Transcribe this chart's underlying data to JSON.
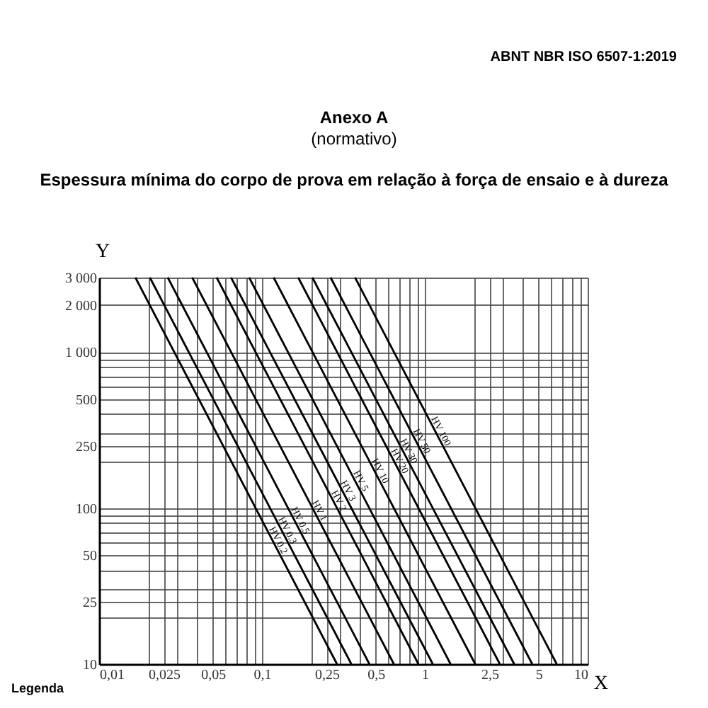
{
  "chart_data": {
    "type": "line",
    "title": "Espessura mínima do corpo de prova em relação à força de ensaio e à dureza",
    "xlabel": "X",
    "ylabel": "Y",
    "annotations": [
      "ABNT NBR ISO 6507-1:2019",
      "Anexo A",
      "(normativo)",
      "Legenda"
    ],
    "log": "xy",
    "grid": true,
    "legend": false,
    "line_style": "solid",
    "marker": "none",
    "xlim": [
      0.01,
      10
    ],
    "ylim": [
      10,
      3000
    ],
    "xticks": [
      {
        "value": 0.01,
        "label": "0,01"
      },
      {
        "value": 0.02,
        "label": null
      },
      {
        "value": 0.025,
        "label": "0,025"
      },
      {
        "value": 0.03,
        "label": null
      },
      {
        "value": 0.04,
        "label": null
      },
      {
        "value": 0.05,
        "label": "0,05"
      },
      {
        "value": 0.06,
        "label": null
      },
      {
        "value": 0.07,
        "label": null
      },
      {
        "value": 0.08,
        "label": null
      },
      {
        "value": 0.09,
        "label": null
      },
      {
        "value": 0.1,
        "label": "0,1"
      },
      {
        "value": 0.2,
        "label": null
      },
      {
        "value": 0.25,
        "label": "0,25"
      },
      {
        "value": 0.3,
        "label": null
      },
      {
        "value": 0.4,
        "label": null
      },
      {
        "value": 0.5,
        "label": "0,5"
      },
      {
        "value": 0.6,
        "label": null
      },
      {
        "value": 0.7,
        "label": null
      },
      {
        "value": 0.8,
        "label": null
      },
      {
        "value": 0.9,
        "label": null
      },
      {
        "value": 1,
        "label": "1"
      },
      {
        "value": 2,
        "label": null
      },
      {
        "value": 2.5,
        "label": "2,5"
      },
      {
        "value": 3,
        "label": null
      },
      {
        "value": 4,
        "label": null
      },
      {
        "value": 5,
        "label": "5"
      },
      {
        "value": 6,
        "label": null
      },
      {
        "value": 7,
        "label": null
      },
      {
        "value": 8,
        "label": null
      },
      {
        "value": 9,
        "label": null
      },
      {
        "value": 10,
        "label": "10"
      }
    ],
    "yticks": [
      {
        "value": 10,
        "label": "10"
      },
      {
        "value": 20,
        "label": null
      },
      {
        "value": 25,
        "label": "25"
      },
      {
        "value": 30,
        "label": null
      },
      {
        "value": 40,
        "label": null
      },
      {
        "value": 50,
        "label": "50"
      },
      {
        "value": 60,
        "label": null
      },
      {
        "value": 70,
        "label": null
      },
      {
        "value": 80,
        "label": null
      },
      {
        "value": 90,
        "label": null
      },
      {
        "value": 100,
        "label": "100"
      },
      {
        "value": 200,
        "label": null
      },
      {
        "value": 250,
        "label": "250"
      },
      {
        "value": 300,
        "label": null
      },
      {
        "value": 400,
        "label": null
      },
      {
        "value": 500,
        "label": "500"
      },
      {
        "value": 600,
        "label": null
      },
      {
        "value": 700,
        "label": null
      },
      {
        "value": 800,
        "label": null
      },
      {
        "value": 900,
        "label": null
      },
      {
        "value": 1000,
        "label": "1 000"
      },
      {
        "value": 2000,
        "label": "2 000"
      },
      {
        "value": 3000,
        "label": "3 000"
      }
    ],
    "series": [
      {
        "name": "HV 0.2",
        "color": "#000000",
        "x": [
          0.0167,
          0.289
        ],
        "values": [
          3000,
          10
        ]
      },
      {
        "name": "HV 0.3",
        "color": "#000000",
        "x": [
          0.0205,
          0.354
        ],
        "values": [
          3000,
          10
        ]
      },
      {
        "name": "HV 0.5",
        "color": "#000000",
        "x": [
          0.0264,
          0.457
        ],
        "values": [
          3000,
          10
        ]
      },
      {
        "name": "HV 1",
        "color": "#000000",
        "x": [
          0.0373,
          0.646
        ],
        "values": [
          3000,
          10
        ]
      },
      {
        "name": "HV 2",
        "color": "#000000",
        "x": [
          0.0527,
          0.914
        ],
        "values": [
          3000,
          10
        ]
      },
      {
        "name": "HV 3",
        "color": "#000000",
        "x": [
          0.0646,
          1.12
        ],
        "values": [
          3000,
          10
        ]
      },
      {
        "name": "HV 5",
        "color": "#000000",
        "x": [
          0.0834,
          1.44
        ],
        "values": [
          3000,
          10
        ]
      },
      {
        "name": "HV 10",
        "color": "#000000",
        "x": [
          0.118,
          2.04
        ],
        "values": [
          3000,
          10
        ]
      },
      {
        "name": "HV 20",
        "color": "#000000",
        "x": [
          0.167,
          2.89
        ],
        "values": [
          3000,
          10
        ]
      },
      {
        "name": "HV 30",
        "color": "#000000",
        "x": [
          0.204,
          3.54
        ],
        "values": [
          3000,
          10
        ]
      },
      {
        "name": "HV 50",
        "color": "#000000",
        "x": [
          0.264,
          4.57
        ],
        "values": [
          3000,
          10
        ]
      },
      {
        "name": "HV 100",
        "color": "#000000",
        "x": [
          0.373,
          6.46
        ],
        "values": [
          3000,
          10
        ]
      }
    ]
  }
}
